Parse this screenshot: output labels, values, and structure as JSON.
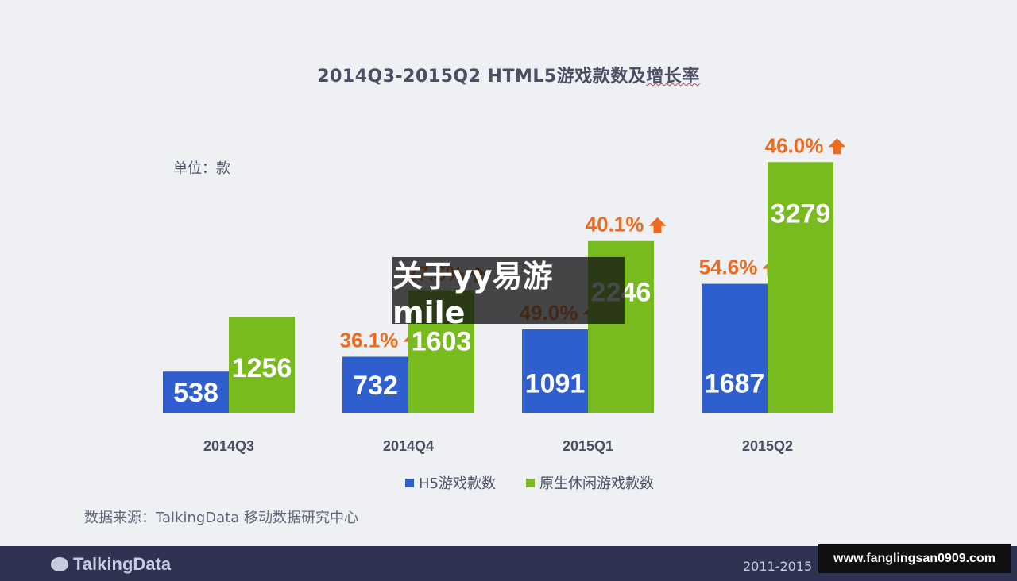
{
  "title_prefix": "2014Q3-2015Q2 HTML5游戏款数及",
  "title_squiggle": "增长率",
  "unit_label": "单位：款",
  "source": "数据来源：TalkingData 移动数据研究中心",
  "brand": "TalkingData",
  "years_text": "2011-2015",
  "watermark": "www.fanglingsan0909.com",
  "overlay_text": "关于yy易游mile",
  "colors": {
    "h5": "#2f5fcf",
    "native": "#78bb1f",
    "growth": "#ee6a1c",
    "axis_text": "#4a4f63"
  },
  "chart_data": {
    "type": "bar",
    "title": "2014Q3-2015Q2 HTML5游戏款数及增长率",
    "categories": [
      "2014Q3",
      "2014Q4",
      "2015Q1",
      "2015Q2"
    ],
    "series": [
      {
        "name": "H5游戏款数",
        "values": [
          538,
          732,
          1091,
          1687
        ],
        "growth": [
          null,
          "36.1%",
          "49.0%",
          "54.6%"
        ]
      },
      {
        "name": "原生休闲游戏款数",
        "values": [
          1256,
          1603,
          2246,
          3279
        ],
        "growth": [
          null,
          "27.6%",
          "40.1%",
          "46.0%"
        ]
      }
    ],
    "ylim": [
      0,
      3500
    ],
    "grid": false,
    "legend": "bottom"
  }
}
